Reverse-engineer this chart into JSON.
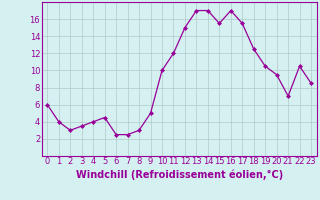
{
  "x": [
    0,
    1,
    2,
    3,
    4,
    5,
    6,
    7,
    8,
    9,
    10,
    11,
    12,
    13,
    14,
    15,
    16,
    17,
    18,
    19,
    20,
    21,
    22,
    23
  ],
  "y": [
    6,
    4,
    3,
    3.5,
    4,
    4.5,
    2.5,
    2.5,
    3,
    5,
    10,
    12,
    15,
    17,
    17,
    15.5,
    17,
    15.5,
    12.5,
    10.5,
    9.5,
    7,
    10.5,
    8.5
  ],
  "line_color": "#990099",
  "marker_color": "#990099",
  "bg_color": "#d5f0f0",
  "grid_color": "#b0c8c8",
  "xlabel": "Windchill (Refroidissement éolien,°C)",
  "ylim": [
    0,
    18
  ],
  "xlim": [
    -0.5,
    23.5
  ],
  "yticks": [
    2,
    4,
    6,
    8,
    10,
    12,
    14,
    16
  ],
  "xticks": [
    0,
    1,
    2,
    3,
    4,
    5,
    6,
    7,
    8,
    9,
    10,
    11,
    12,
    13,
    14,
    15,
    16,
    17,
    18,
    19,
    20,
    21,
    22,
    23
  ],
  "xtick_labels": [
    "0",
    "1",
    "2",
    "3",
    "4",
    "5",
    "6",
    "7",
    "8",
    "9",
    "10",
    "11",
    "12",
    "13",
    "14",
    "15",
    "16",
    "17",
    "18",
    "19",
    "20",
    "21",
    "22",
    "23"
  ],
  "label_fontsize": 7,
  "tick_fontsize": 6
}
